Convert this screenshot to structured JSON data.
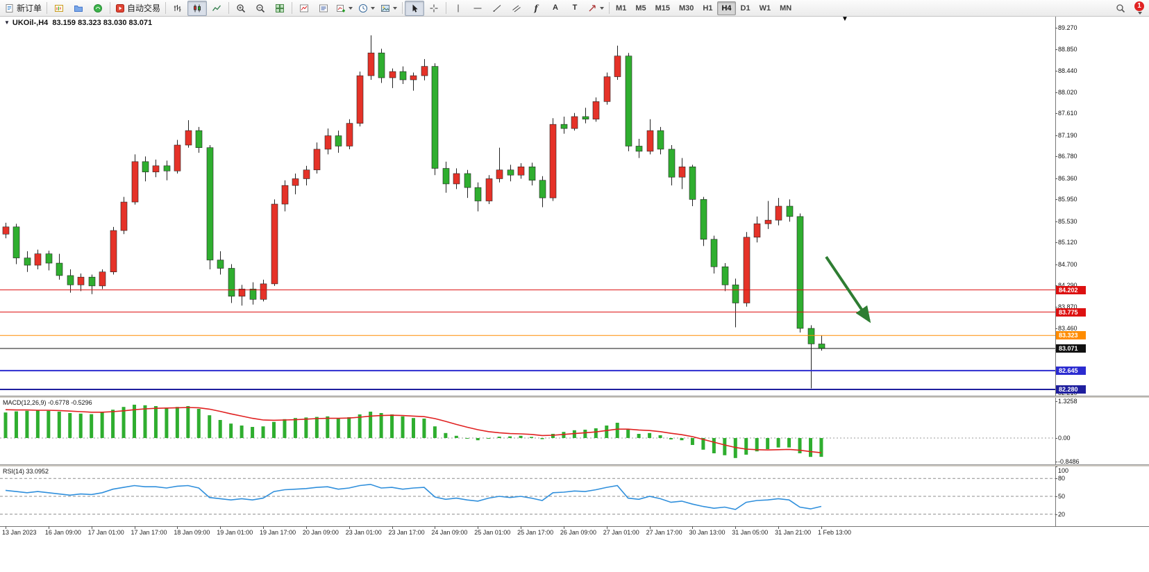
{
  "toolbar": {
    "new_order": "新订单",
    "auto_trading": "自动交易",
    "glyphs": {
      "fibonacci": "f",
      "text_tool": "A",
      "label_tool": "T"
    },
    "timeframes": [
      "M1",
      "M5",
      "M15",
      "M30",
      "H1",
      "H4",
      "D1",
      "W1",
      "MN"
    ],
    "active_timeframe": "H4",
    "notification_count": "1"
  },
  "chart_data": {
    "type": "candlestick",
    "symbol": "UKOil-",
    "timeframe": "H4",
    "title": "UKOil-,H4",
    "ohlc_display": "83.159 83.323 83.030 83.071",
    "bars_per_label": 4,
    "x_labels": [
      "13 Jan 2023",
      "16 Jan 09:00",
      "17 Jan 01:00",
      "17 Jan 17:00",
      "18 Jan 09:00",
      "19 Jan 01:00",
      "19 Jan 17:00",
      "20 Jan 09:00",
      "23 Jan 01:00",
      "23 Jan 17:00",
      "24 Jan 09:00",
      "25 Jan 01:00",
      "25 Jan 17:00",
      "26 Jan 09:00",
      "27 Jan 01:00",
      "27 Jan 17:00",
      "30 Jan 13:00",
      "31 Jan 05:00",
      "31 Jan 21:00",
      "1 Feb 13:00"
    ],
    "colors": {
      "up": "#e53228",
      "down": "#2fae2f",
      "wick": "#222222"
    },
    "y_axis": {
      "max": 89.48,
      "min": 82.16,
      "labels": [
        "89.270",
        "88.850",
        "88.440",
        "88.020",
        "87.610",
        "87.190",
        "86.780",
        "86.360",
        "85.950",
        "85.530",
        "85.120",
        "84.700",
        "84.290",
        "83.870",
        "83.460",
        "83.040",
        "82.630",
        "82.210"
      ]
    },
    "ohlc": [
      [
        85.28,
        85.5,
        85.2,
        85.42
      ],
      [
        85.42,
        85.48,
        84.7,
        84.82
      ],
      [
        84.82,
        84.95,
        84.55,
        84.68
      ],
      [
        84.68,
        84.98,
        84.6,
        84.9
      ],
      [
        84.9,
        84.96,
        84.58,
        84.72
      ],
      [
        84.72,
        84.9,
        84.4,
        84.48
      ],
      [
        84.48,
        84.6,
        84.15,
        84.3
      ],
      [
        84.3,
        84.52,
        84.18,
        84.45
      ],
      [
        84.45,
        84.5,
        84.12,
        84.28
      ],
      [
        84.28,
        84.6,
        84.22,
        84.55
      ],
      [
        84.55,
        85.42,
        84.5,
        85.35
      ],
      [
        85.35,
        86.0,
        85.28,
        85.9
      ],
      [
        85.9,
        86.82,
        85.85,
        86.68
      ],
      [
        86.68,
        86.78,
        86.3,
        86.48
      ],
      [
        86.48,
        86.72,
        86.38,
        86.6
      ],
      [
        86.6,
        86.7,
        86.32,
        86.5
      ],
      [
        86.5,
        87.1,
        86.45,
        87.0
      ],
      [
        87.0,
        87.48,
        86.95,
        87.28
      ],
      [
        87.28,
        87.35,
        86.85,
        86.95
      ],
      [
        86.95,
        87.0,
        84.6,
        84.78
      ],
      [
        84.78,
        84.95,
        84.5,
        84.62
      ],
      [
        84.62,
        84.7,
        83.95,
        84.08
      ],
      [
        84.08,
        84.3,
        83.9,
        84.22
      ],
      [
        84.22,
        84.35,
        83.92,
        84.02
      ],
      [
        84.02,
        84.4,
        83.98,
        84.32
      ],
      [
        84.32,
        85.95,
        84.28,
        85.86
      ],
      [
        85.86,
        86.32,
        85.72,
        86.22
      ],
      [
        86.22,
        86.45,
        86.05,
        86.35
      ],
      [
        86.35,
        86.6,
        86.22,
        86.52
      ],
      [
        86.52,
        87.05,
        86.45,
        86.92
      ],
      [
        86.92,
        87.32,
        86.82,
        87.18
      ],
      [
        87.18,
        87.28,
        86.85,
        86.98
      ],
      [
        86.98,
        87.5,
        86.92,
        87.42
      ],
      [
        87.42,
        88.42,
        87.36,
        88.34
      ],
      [
        88.34,
        89.12,
        88.26,
        88.78
      ],
      [
        88.78,
        88.86,
        88.2,
        88.3
      ],
      [
        88.3,
        88.48,
        88.1,
        88.42
      ],
      [
        88.42,
        88.52,
        88.18,
        88.26
      ],
      [
        88.26,
        88.4,
        88.05,
        88.34
      ],
      [
        88.34,
        88.66,
        88.25,
        88.52
      ],
      [
        88.52,
        88.58,
        86.42,
        86.55
      ],
      [
        86.55,
        86.68,
        86.08,
        86.25
      ],
      [
        86.25,
        86.55,
        86.15,
        86.45
      ],
      [
        86.45,
        86.52,
        85.98,
        86.18
      ],
      [
        86.18,
        86.28,
        85.72,
        85.92
      ],
      [
        85.92,
        86.42,
        85.86,
        86.35
      ],
      [
        86.35,
        86.95,
        86.28,
        86.52
      ],
      [
        86.52,
        86.62,
        86.3,
        86.42
      ],
      [
        86.42,
        86.65,
        86.35,
        86.58
      ],
      [
        86.58,
        86.66,
        86.22,
        86.32
      ],
      [
        86.32,
        86.4,
        85.8,
        85.98
      ],
      [
        85.98,
        87.52,
        85.92,
        87.4
      ],
      [
        87.4,
        87.55,
        87.22,
        87.32
      ],
      [
        87.32,
        87.62,
        87.28,
        87.55
      ],
      [
        87.55,
        87.72,
        87.42,
        87.5
      ],
      [
        87.5,
        87.92,
        87.45,
        87.84
      ],
      [
        87.84,
        88.4,
        87.78,
        88.32
      ],
      [
        88.32,
        88.92,
        88.26,
        88.72
      ],
      [
        88.72,
        88.78,
        86.88,
        86.98
      ],
      [
        86.98,
        87.12,
        86.75,
        86.88
      ],
      [
        86.88,
        87.5,
        86.82,
        87.28
      ],
      [
        87.28,
        87.35,
        86.82,
        86.92
      ],
      [
        86.92,
        87.0,
        86.22,
        86.38
      ],
      [
        86.38,
        86.75,
        86.15,
        86.58
      ],
      [
        86.58,
        86.62,
        85.82,
        85.95
      ],
      [
        85.95,
        86.0,
        85.05,
        85.18
      ],
      [
        85.18,
        85.25,
        84.52,
        84.65
      ],
      [
        84.65,
        84.72,
        84.18,
        84.3
      ],
      [
        84.3,
        84.42,
        83.48,
        83.95
      ],
      [
        83.95,
        85.32,
        83.88,
        85.22
      ],
      [
        85.22,
        85.62,
        85.12,
        85.48
      ],
      [
        85.48,
        85.92,
        85.38,
        85.55
      ],
      [
        85.55,
        85.98,
        85.45,
        85.82
      ],
      [
        85.82,
        85.95,
        85.52,
        85.62
      ],
      [
        85.62,
        85.68,
        83.38,
        83.46
      ],
      [
        83.46,
        83.52,
        82.3,
        83.16
      ],
      [
        83.159,
        83.323,
        83.03,
        83.071
      ]
    ],
    "price_lines": [
      {
        "label": "84.202",
        "price": 84.202,
        "color": "#dd1111",
        "width": 1
      },
      {
        "label": "83.775",
        "price": 83.775,
        "color": "#dd1111",
        "width": 1
      },
      {
        "label": "83.323",
        "price": 83.323,
        "color": "#ff8c00",
        "width": 1
      },
      {
        "label": "83.071",
        "price": 83.071,
        "color": "#111111",
        "width": 1
      },
      {
        "label": "82.645",
        "price": 82.645,
        "color": "#2b2bd0",
        "width": 2
      },
      {
        "label": "82.280",
        "price": 82.28,
        "color": "#1f1f9e",
        "width": 2
      }
    ],
    "annotation": {
      "type": "arrow",
      "from": [
        1190,
        346
      ],
      "to": [
        1252,
        438
      ],
      "color": "#2e7d32"
    },
    "indicators": {
      "macd": {
        "label": "MACD(12,26,9)",
        "values_text": "-0.6778 -0.5296",
        "scale": {
          "max": 1.45,
          "min": -0.95
        },
        "axis": [
          {
            "text": "1.3258",
            "v": 1.3258
          },
          {
            "text": "0.00",
            "v": 0
          },
          {
            "text": "-0.8486",
            "v": -0.8486
          }
        ],
        "colors": {
          "hist": "#2fae2f",
          "signal": "#e02020"
        },
        "main": [
          0.92,
          0.96,
          0.98,
          1.0,
          0.98,
          0.95,
          0.9,
          0.88,
          0.86,
          0.92,
          1.02,
          1.12,
          1.2,
          1.18,
          1.15,
          1.1,
          1.12,
          1.15,
          1.05,
          0.82,
          0.65,
          0.52,
          0.45,
          0.4,
          0.42,
          0.58,
          0.68,
          0.72,
          0.74,
          0.76,
          0.78,
          0.72,
          0.75,
          0.85,
          0.95,
          0.9,
          0.85,
          0.78,
          0.72,
          0.7,
          0.42,
          0.18,
          0.08,
          0.0,
          -0.08,
          -0.02,
          0.05,
          0.06,
          0.08,
          0.04,
          -0.04,
          0.15,
          0.22,
          0.28,
          0.3,
          0.35,
          0.45,
          0.55,
          0.3,
          0.15,
          0.18,
          0.1,
          -0.05,
          -0.08,
          -0.25,
          -0.42,
          -0.55,
          -0.62,
          -0.72,
          -0.6,
          -0.48,
          -0.4,
          -0.34,
          -0.34,
          -0.55,
          -0.68,
          -0.6778
        ],
        "signal": [
          1.02,
          1.01,
          1.01,
          1.0,
          1.0,
          0.99,
          0.97,
          0.95,
          0.93,
          0.93,
          0.95,
          0.98,
          1.02,
          1.05,
          1.07,
          1.08,
          1.09,
          1.1,
          1.09,
          1.04,
          0.96,
          0.87,
          0.79,
          0.71,
          0.65,
          0.64,
          0.65,
          0.66,
          0.68,
          0.7,
          0.71,
          0.71,
          0.72,
          0.75,
          0.79,
          0.81,
          0.82,
          0.81,
          0.79,
          0.77,
          0.7,
          0.6,
          0.49,
          0.39,
          0.3,
          0.23,
          0.19,
          0.16,
          0.15,
          0.13,
          0.09,
          0.1,
          0.13,
          0.16,
          0.19,
          0.22,
          0.27,
          0.32,
          0.32,
          0.29,
          0.27,
          0.23,
          0.17,
          0.12,
          0.05,
          -0.05,
          -0.15,
          -0.25,
          -0.34,
          -0.4,
          -0.42,
          -0.43,
          -0.42,
          -0.41,
          -0.44,
          -0.49,
          -0.5296
        ]
      },
      "rsi": {
        "label": "RSI(14)",
        "value_text": "33.0952",
        "color": "#2f8fdc",
        "levels": [
          80,
          50,
          20
        ],
        "axis": [
          {
            "text": "100",
            "v": 100
          },
          {
            "text": "80",
            "v": 80
          },
          {
            "text": "50",
            "v": 50
          },
          {
            "text": "20",
            "v": 20
          }
        ],
        "series": [
          60,
          58,
          56,
          58,
          56,
          54,
          52,
          54,
          53,
          56,
          62,
          65,
          68,
          66,
          66,
          64,
          67,
          68,
          64,
          48,
          46,
          44,
          46,
          44,
          47,
          58,
          61,
          62,
          63,
          65,
          66,
          62,
          64,
          68,
          70,
          64,
          65,
          62,
          64,
          65,
          49,
          45,
          47,
          44,
          42,
          47,
          50,
          48,
          50,
          47,
          43,
          56,
          57,
          59,
          58,
          61,
          65,
          68,
          47,
          45,
          50,
          46,
          40,
          42,
          37,
          33,
          30,
          32,
          28,
          40,
          43,
          44,
          46,
          44,
          32,
          29,
          33.1
        ]
      }
    }
  }
}
